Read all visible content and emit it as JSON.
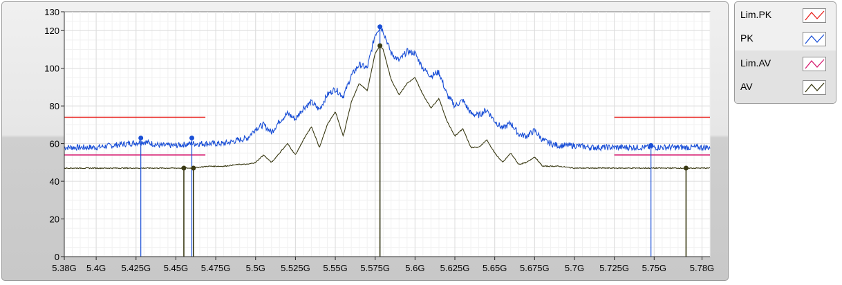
{
  "chart_data": {
    "type": "line",
    "title": "",
    "xlabel": "",
    "ylabel": "",
    "xlim": [
      5.38,
      5.785
    ],
    "ylim": [
      0,
      130
    ],
    "grid": true,
    "legend_position": "right",
    "x_ticks": [
      5.38,
      5.4,
      5.425,
      5.45,
      5.475,
      5.5,
      5.525,
      5.55,
      5.575,
      5.6,
      5.625,
      5.65,
      5.675,
      5.7,
      5.725,
      5.75,
      5.78
    ],
    "x_tick_labels": [
      "5.38G",
      "5.4G",
      "5.425G",
      "5.45G",
      "5.475G",
      "5.5G",
      "5.525G",
      "5.55G",
      "5.575G",
      "5.6G",
      "5.625G",
      "5.65G",
      "5.675G",
      "5.7G",
      "5.725G",
      "5.75G",
      "5.78G"
    ],
    "y_ticks": [
      0,
      20,
      40,
      60,
      80,
      100,
      120,
      130
    ],
    "y_tick_labels": [
      "0",
      "20",
      "40",
      "60",
      "80",
      "100",
      "120",
      "130"
    ],
    "series": [
      {
        "name": "Lim.PK",
        "color": "#e8201c",
        "segments": [
          [
            [
              5.38,
              74
            ],
            [
              5.4685,
              74
            ]
          ],
          [
            [
              5.725,
              74
            ],
            [
              5.785,
              74
            ]
          ]
        ]
      },
      {
        "name": "PK",
        "color": "#1a4fd6",
        "x": [
          5.38,
          5.39,
          5.4,
          5.41,
          5.42,
          5.43,
          5.44,
          5.45,
          5.46,
          5.47,
          5.48,
          5.49,
          5.495,
          5.5,
          5.505,
          5.51,
          5.515,
          5.52,
          5.525,
          5.53,
          5.535,
          5.54,
          5.545,
          5.55,
          5.555,
          5.56,
          5.565,
          5.57,
          5.575,
          5.578,
          5.58,
          5.585,
          5.59,
          5.595,
          5.6,
          5.605,
          5.61,
          5.615,
          5.62,
          5.625,
          5.63,
          5.635,
          5.64,
          5.645,
          5.65,
          5.655,
          5.66,
          5.665,
          5.67,
          5.675,
          5.68,
          5.685,
          5.69,
          5.7,
          5.71,
          5.72,
          5.73,
          5.74,
          5.75,
          5.76,
          5.77,
          5.785
        ],
        "y": [
          58,
          58,
          58,
          59,
          60,
          61,
          59,
          59,
          60,
          60,
          60,
          62,
          63,
          68,
          70,
          66,
          72,
          76,
          73,
          79,
          82,
          78,
          86,
          89,
          85,
          96,
          102,
          100,
          118,
          122,
          120,
          108,
          104,
          109,
          108,
          100,
          96,
          98,
          86,
          80,
          83,
          76,
          75,
          78,
          72,
          68,
          71,
          65,
          64,
          67,
          62,
          60,
          59,
          59,
          58,
          58,
          58,
          58,
          58,
          58,
          58,
          58
        ]
      },
      {
        "name": "Lim.AV",
        "color": "#d6186e",
        "segments": [
          [
            [
              5.38,
              54
            ],
            [
              5.4685,
              54
            ]
          ],
          [
            [
              5.725,
              54
            ],
            [
              5.785,
              54
            ]
          ]
        ]
      },
      {
        "name": "AV",
        "color": "#3a3a14",
        "x": [
          5.38,
          5.4,
          5.42,
          5.44,
          5.46,
          5.47,
          5.48,
          5.49,
          5.495,
          5.5,
          5.505,
          5.51,
          5.515,
          5.52,
          5.525,
          5.53,
          5.535,
          5.54,
          5.545,
          5.55,
          5.555,
          5.56,
          5.565,
          5.57,
          5.575,
          5.578,
          5.58,
          5.585,
          5.59,
          5.595,
          5.6,
          5.605,
          5.61,
          5.615,
          5.62,
          5.625,
          5.63,
          5.635,
          5.64,
          5.645,
          5.65,
          5.655,
          5.66,
          5.665,
          5.67,
          5.675,
          5.68,
          5.69,
          5.7,
          5.72,
          5.74,
          5.76,
          5.785
        ],
        "y": [
          47,
          47,
          47,
          47,
          47,
          48,
          48,
          49,
          49,
          50,
          54,
          50,
          55,
          60,
          54,
          62,
          69,
          58,
          70,
          77,
          64,
          82,
          92,
          88,
          108,
          112,
          110,
          94,
          86,
          92,
          95,
          86,
          79,
          84,
          72,
          64,
          68,
          58,
          58,
          62,
          55,
          50,
          55,
          49,
          50,
          53,
          48,
          48,
          47,
          47,
          47,
          47,
          47
        ]
      }
    ],
    "markers": [
      {
        "series": "PK",
        "x": 5.428,
        "y": 63
      },
      {
        "series": "PK",
        "x": 5.46,
        "y": 63
      },
      {
        "series": "PK",
        "x": 5.578,
        "y": 122
      },
      {
        "series": "PK",
        "x": 5.748,
        "y": 59
      },
      {
        "series": "AV",
        "x": 5.455,
        "y": 47
      },
      {
        "series": "AV",
        "x": 5.461,
        "y": 47
      },
      {
        "series": "AV",
        "x": 5.578,
        "y": 112
      },
      {
        "series": "AV",
        "x": 5.77,
        "y": 47
      }
    ]
  },
  "legend": {
    "items": [
      {
        "label": "Lim.PK",
        "color": "#e8201c"
      },
      {
        "label": "PK",
        "color": "#1a4fd6"
      },
      {
        "label": "Lim.AV",
        "color": "#d6186e"
      },
      {
        "label": "AV",
        "color": "#3a3a14"
      }
    ]
  }
}
